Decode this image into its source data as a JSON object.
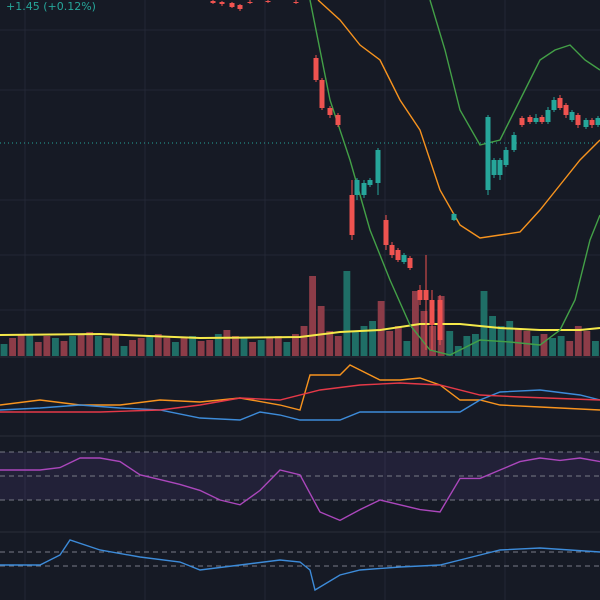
{
  "header": {
    "change": "+1.45 (+0.12%)"
  },
  "chart_data": {
    "type": "candlestick",
    "panes": [
      {
        "ylim": [
          0,
          350
        ],
        "levels": [
          207
        ]
      },
      {
        "ylim": [
          0,
          100
        ]
      },
      {
        "ylim": [
          0,
          70
        ]
      },
      {
        "ylim": [
          10,
          90
        ],
        "levels": [
          70,
          50,
          30
        ]
      },
      {
        "ylim": [
          0,
          70
        ],
        "levels": [
          48,
          34
        ]
      }
    ],
    "xlim": [
      0,
      600
    ],
    "up_color": "#26a69a",
    "down_color": "#ef5350",
    "candles": {
      "x": [
        213,
        222,
        232,
        240,
        250,
        268,
        296,
        316,
        322,
        330,
        338,
        352,
        357,
        364,
        370,
        378,
        386,
        392,
        398,
        404,
        410,
        420,
        426,
        432,
        440,
        454,
        488,
        494,
        500,
        506,
        514,
        522,
        530,
        536,
        542,
        548,
        554,
        560,
        566,
        572,
        578,
        586,
        592,
        598
      ],
      "open": [
        349,
        348,
        347,
        345,
        348,
        349,
        348,
        292,
        270,
        242,
        235,
        155,
        155,
        155,
        165,
        167,
        130,
        105,
        100,
        88,
        92,
        60,
        60,
        50,
        50,
        130,
        160,
        175,
        175,
        185,
        200,
        232,
        233,
        228,
        233,
        228,
        240,
        252,
        245,
        230,
        235,
        223,
        230,
        225
      ],
      "high": [
        350,
        349,
        348,
        346,
        350,
        350,
        350,
        295,
        272,
        244,
        237,
        170,
        172,
        170,
        172,
        202,
        135,
        108,
        102,
        97,
        94,
        65,
        95,
        60,
        55,
        137,
        235,
        192,
        192,
        203,
        218,
        234,
        235,
        236,
        235,
        243,
        253,
        255,
        247,
        240,
        237,
        232,
        232,
        234
      ],
      "low": [
        346,
        344,
        342,
        339,
        346,
        347,
        346,
        268,
        240,
        232,
        223,
        110,
        150,
        152,
        163,
        155,
        100,
        92,
        88,
        86,
        80,
        45,
        0,
        0,
        5,
        129,
        155,
        172,
        170,
        183,
        198,
        223,
        226,
        226,
        226,
        226,
        238,
        240,
        232,
        228,
        222,
        221,
        222,
        223
      ],
      "close": [
        347,
        346,
        343,
        341,
        347,
        348,
        347,
        270,
        242,
        235,
        225,
        115,
        170,
        167,
        170,
        200,
        105,
        95,
        90,
        95,
        82,
        50,
        50,
        25,
        10,
        136,
        233,
        190,
        190,
        200,
        215,
        225,
        228,
        232,
        228,
        240,
        250,
        242,
        235,
        238,
        225,
        230,
        225,
        232
      ]
    },
    "volume": {
      "values": [
        12,
        18,
        22,
        22,
        14,
        20,
        18,
        15,
        20,
        22,
        24,
        20,
        18,
        22,
        10,
        16,
        18,
        20,
        22,
        18,
        14,
        18,
        20,
        15,
        16,
        22,
        26,
        20,
        18,
        14,
        16,
        18,
        20,
        14,
        22,
        30,
        80,
        50,
        25,
        20,
        85,
        25,
        30,
        35,
        55,
        25,
        30,
        15,
        65,
        45,
        30,
        60,
        25,
        10,
        20,
        22,
        65,
        40,
        30,
        35,
        28,
        25,
        20,
        22,
        18,
        20,
        15,
        30,
        25,
        15
      ],
      "colors": [
        "#1f6e66",
        "#8c3c48",
        "#8c3c48",
        "#1f6e66",
        "#8c3c48",
        "#8c3c48",
        "#1f6e66",
        "#8c3c48",
        "#1f6e66",
        "#8c3c48",
        "#8c3c48",
        "#1f6e66",
        "#8c3c48",
        "#8c3c48",
        "#1f6e66",
        "#8c3c48",
        "#8c3c48",
        "#1f6e66",
        "#8c3c48",
        "#8c3c48",
        "#1f6e66",
        "#8c3c48",
        "#1f6e66",
        "#8c3c48",
        "#8c3c48",
        "#1f6e66",
        "#8c3c48",
        "#8c3c48",
        "#1f6e66",
        "#8c3c48",
        "#1f6e66",
        "#8c3c48",
        "#8c3c48",
        "#1f6e66",
        "#8c3c48",
        "#8c3c48",
        "#8c3c48",
        "#8c3c48",
        "#8c3c48",
        "#8c3c48",
        "#1f6e66",
        "#1f6e66",
        "#1f6e66",
        "#1f6e66",
        "#8c3c48",
        "#8c3c48",
        "#8c3c48",
        "#1f6e66",
        "#8c3c48",
        "#8c3c48",
        "#8c3c48",
        "#8c3c48",
        "#1f6e66",
        "#1f6e66",
        "#1f6e66",
        "#1f6e66",
        "#1f6e66",
        "#1f6e66",
        "#1f6e66",
        "#1f6e66",
        "#8c3c48",
        "#8c3c48",
        "#1f6e66",
        "#8c3c48",
        "#1f6e66",
        "#1f6e66",
        "#8c3c48",
        "#8c3c48",
        "#8c3c48",
        "#1f6e66"
      ]
    },
    "lines": [
      {
        "pane": 0,
        "color": "#f5e94a",
        "x": [
          0,
          100,
          200,
          300,
          340,
          380,
          420,
          460,
          500,
          540,
          580,
          600
        ],
        "values": [
          15,
          16,
          12,
          13,
          18,
          20,
          26,
          26,
          22,
          20,
          20,
          22
        ]
      },
      {
        "pane": 0,
        "color": "#43a047",
        "x": [
          310,
          330,
          350,
          370,
          390,
          410,
          430,
          450,
          480,
          510,
          540,
          560,
          575,
          590,
          600
        ],
        "values": [
          350,
          250,
          190,
          120,
          70,
          25,
          0,
          -5,
          10,
          8,
          5,
          20,
          50,
          110,
          135
        ]
      },
      {
        "pane": 0,
        "color": "#43a047",
        "x": [
          430,
          445,
          460,
          480,
          500,
          520,
          540,
          555,
          570,
          585,
          600
        ],
        "values": [
          350,
          300,
          240,
          205,
          210,
          250,
          290,
          300,
          305,
          290,
          280
        ]
      },
      {
        "pane": 0,
        "color": "#f7931e",
        "x": [
          318,
          340,
          360,
          380,
          400,
          420,
          440,
          460,
          480,
          500,
          520,
          540,
          560,
          580,
          600
        ],
        "values": [
          350,
          330,
          305,
          290,
          250,
          220,
          160,
          125,
          112,
          115,
          118,
          140,
          165,
          190,
          210
        ]
      },
      {
        "pane": 2,
        "color": "#f7931e",
        "x": [
          0,
          40,
          80,
          120,
          160,
          200,
          240,
          280,
          300,
          310,
          340,
          350,
          380,
          400,
          420,
          440,
          460,
          480,
          500,
          540,
          600
        ],
        "values": [
          25,
          30,
          25,
          25,
          30,
          28,
          32,
          25,
          20,
          55,
          55,
          65,
          50,
          50,
          52,
          45,
          30,
          30,
          25,
          23,
          20
        ]
      },
      {
        "pane": 2,
        "color": "#3d8bd9",
        "x": [
          0,
          40,
          80,
          120,
          160,
          200,
          240,
          260,
          280,
          300,
          320,
          340,
          360,
          400,
          440,
          460,
          480,
          500,
          540,
          580,
          600
        ],
        "values": [
          20,
          22,
          25,
          22,
          20,
          12,
          10,
          18,
          15,
          10,
          10,
          10,
          18,
          18,
          18,
          18,
          30,
          38,
          40,
          35,
          30
        ]
      },
      {
        "pane": 2,
        "color": "#e53948",
        "x": [
          0,
          100,
          160,
          200,
          240,
          280,
          320,
          360,
          400,
          440,
          480,
          520,
          600
        ],
        "values": [
          18,
          18,
          20,
          25,
          32,
          30,
          40,
          45,
          47,
          45,
          35,
          33,
          30
        ]
      },
      {
        "pane": 3,
        "color": "#ab47bc",
        "x": [
          0,
          20,
          40,
          60,
          80,
          100,
          120,
          140,
          160,
          180,
          200,
          220,
          240,
          260,
          280,
          300,
          320,
          340,
          360,
          380,
          400,
          420,
          440,
          460,
          480,
          500,
          520,
          540,
          560,
          580,
          600
        ],
        "values": [
          55,
          55,
          55,
          57,
          65,
          65,
          62,
          51,
          47,
          43,
          38,
          30,
          26,
          38,
          55,
          51,
          20,
          13,
          22,
          30,
          26,
          22,
          20,
          48,
          48,
          55,
          62,
          65,
          63,
          65,
          62
        ]
      },
      {
        "pane": 4,
        "color": "#3d8bd9",
        "x": [
          0,
          40,
          60,
          70,
          100,
          140,
          180,
          200,
          240,
          280,
          300,
          310,
          315,
          340,
          360,
          400,
          440,
          480,
          500,
          540,
          600
        ],
        "values": [
          35,
          35,
          45,
          60,
          50,
          43,
          38,
          30,
          35,
          40,
          38,
          30,
          10,
          25,
          30,
          33,
          35,
          45,
          50,
          52,
          48
        ]
      }
    ]
  }
}
